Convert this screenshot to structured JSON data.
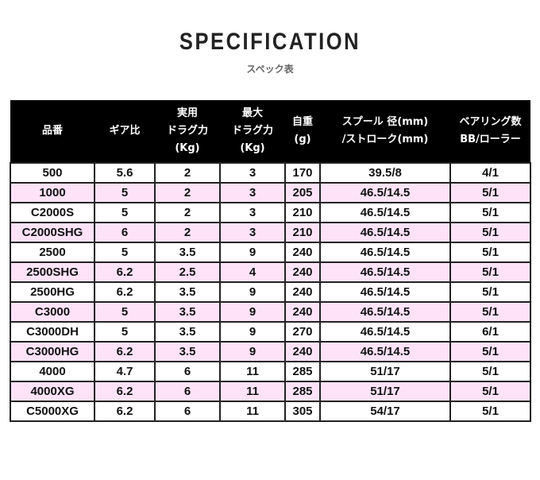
{
  "title": "SPECIFICATION",
  "subtitle": "スペック表",
  "colors": {
    "header_bg": "#000000",
    "alt_row": "#fde2f8"
  },
  "headers": [
    [
      "品番"
    ],
    [
      "ギア比"
    ],
    [
      "実用",
      "ドラグ力",
      "(Kg)"
    ],
    [
      "最大",
      "ドラグ力",
      "(Kg)"
    ],
    [
      "自重",
      "(g)"
    ],
    [
      "スプール 径(mm)",
      "/ストローク(mm)"
    ],
    [
      "ベアリング数",
      "BB/ローラー"
    ]
  ],
  "rows": [
    [
      "500",
      "5.6",
      "2",
      "3",
      "170",
      "39.5/8",
      "4/1"
    ],
    [
      "1000",
      "5",
      "2",
      "3",
      "205",
      "46.5/14.5",
      "5/1"
    ],
    [
      "C2000S",
      "5",
      "2",
      "3",
      "210",
      "46.5/14.5",
      "5/1"
    ],
    [
      "C2000SHG",
      "6",
      "2",
      "3",
      "210",
      "46.5/14.5",
      "5/1"
    ],
    [
      "2500",
      "5",
      "3.5",
      "9",
      "240",
      "46.5/14.5",
      "5/1"
    ],
    [
      "2500SHG",
      "6.2",
      "2.5",
      "4",
      "240",
      "46.5/14.5",
      "5/1"
    ],
    [
      "2500HG",
      "6.2",
      "3.5",
      "9",
      "240",
      "46.5/14.5",
      "5/1"
    ],
    [
      "C3000",
      "5",
      "3.5",
      "9",
      "240",
      "46.5/14.5",
      "5/1"
    ],
    [
      "C3000DH",
      "5",
      "3.5",
      "9",
      "270",
      "46.5/14.5",
      "6/1"
    ],
    [
      "C3000HG",
      "6.2",
      "3.5",
      "9",
      "240",
      "46.5/14.5",
      "5/1"
    ],
    [
      "4000",
      "4.7",
      "6",
      "11",
      "285",
      "51/17",
      "5/1"
    ],
    [
      "4000XG",
      "6.2",
      "6",
      "11",
      "285",
      "51/17",
      "5/1"
    ],
    [
      "C5000XG",
      "6.2",
      "6",
      "11",
      "305",
      "54/17",
      "5/1"
    ]
  ]
}
